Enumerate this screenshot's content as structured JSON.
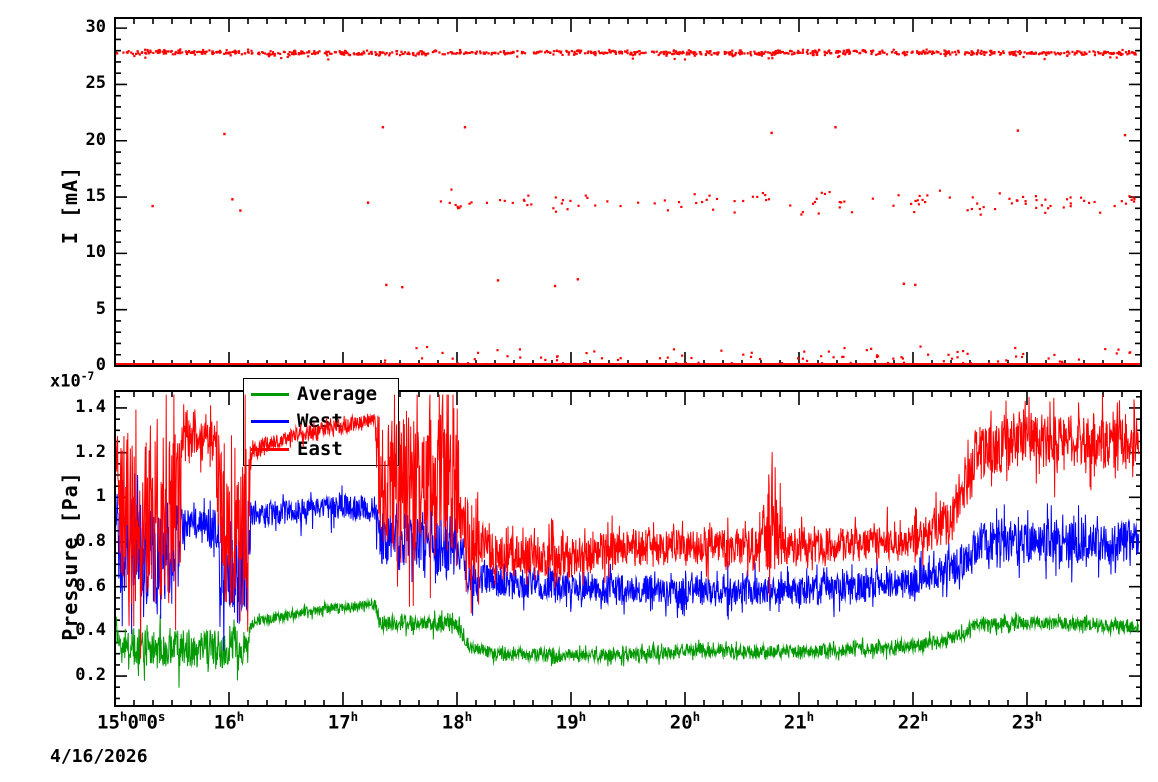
{
  "figure": {
    "date_label": "4/16/2026",
    "background": "#ffffff",
    "frame_color": "#000000"
  },
  "x_axis": {
    "tick_values": [
      15,
      16,
      17,
      18,
      19,
      20,
      21,
      22,
      23
    ],
    "tick_labels": [
      "15^{h}0^{m}0^{s}",
      "16^{h}",
      "17^{h}",
      "18^{h}",
      "19^{h}",
      "20^{h}",
      "21^{h}",
      "22^{h}",
      "23^{h}"
    ],
    "minor_tick_step_hours": 0.16667
  },
  "chart_data": [
    {
      "id": "beam-current",
      "type": "scatter",
      "ylabel": "I [mA]",
      "marker_color": "#ff0000",
      "xlim": [
        15,
        24
      ],
      "ylim": [
        0,
        30.9
      ],
      "grid": false,
      "yticks": {
        "values": [
          0,
          5,
          10,
          15,
          20,
          25,
          30
        ],
        "labels": [
          "0",
          "5",
          "10",
          "15",
          "20",
          "25",
          "30"
        ]
      },
      "bands": [
        {
          "name": "main-current",
          "y_center": 27.82,
          "y_sigma": 0.1,
          "x_start": 15.0,
          "x_end": 23.98,
          "count": 900
        },
        {
          "name": "dropout-mid",
          "y_center": 14.55,
          "y_sigma": 0.45,
          "x_start": 17.85,
          "x_end": 23.95,
          "count": 125
        },
        {
          "name": "near-zero-scatter",
          "y_center": 0.75,
          "y_sigma": 0.45,
          "x_start": 17.3,
          "x_end": 23.95,
          "count": 95
        },
        {
          "name": "zero-line",
          "y_center": 0.05,
          "y_sigma": 0.05,
          "x_start": 15.0,
          "x_end": 23.98,
          "count": 260,
          "solid": true
        }
      ],
      "outliers": [
        [
          15.33,
          14.2
        ],
        [
          15.96,
          20.6
        ],
        [
          16.03,
          14.8
        ],
        [
          16.1,
          13.8
        ],
        [
          17.22,
          14.5
        ],
        [
          17.35,
          21.2
        ],
        [
          17.38,
          7.2
        ],
        [
          17.52,
          7.0
        ],
        [
          18.07,
          21.2
        ],
        [
          18.36,
          7.6
        ],
        [
          18.86,
          7.1
        ],
        [
          19.06,
          7.7
        ],
        [
          20.76,
          20.7
        ],
        [
          21.32,
          21.2
        ],
        [
          21.92,
          7.3
        ],
        [
          22.02,
          7.2
        ],
        [
          22.92,
          20.9
        ],
        [
          23.86,
          20.5
        ]
      ]
    },
    {
      "id": "pressure",
      "type": "line",
      "ylabel": "Pressure [Pa]",
      "scale_label": "x10^{-7}",
      "xlim": [
        15,
        24
      ],
      "ylim": [
        0.066,
        1.476
      ],
      "grid": false,
      "yticks": {
        "values": [
          0.2,
          0.4,
          0.6,
          0.8,
          1.0,
          1.2,
          1.4
        ],
        "labels": [
          "0.2",
          "0.4",
          "0.6",
          "0.8",
          "1",
          "1.2",
          "1.4"
        ]
      },
      "legend": {
        "position": "top-left",
        "entries": [
          {
            "label": "Average",
            "color": "#009900"
          },
          {
            "label": "West",
            "color": "#0000ff"
          },
          {
            "label": "East",
            "color": "#ff0000"
          }
        ]
      },
      "series": [
        {
          "name": "Average",
          "color": "#009900",
          "keyframes": [
            [
              15.0,
              0.4,
              0.05
            ],
            [
              15.06,
              0.33,
              0.11
            ],
            [
              16.16,
              0.32,
              0.11
            ],
            [
              16.2,
              0.44,
              0.025
            ],
            [
              16.7,
              0.49,
              0.025
            ],
            [
              17.0,
              0.51,
              0.025
            ],
            [
              17.28,
              0.52,
              0.03
            ],
            [
              17.33,
              0.44,
              0.04
            ],
            [
              18.0,
              0.43,
              0.045
            ],
            [
              18.1,
              0.34,
              0.04
            ],
            [
              18.3,
              0.3,
              0.035
            ],
            [
              19.3,
              0.29,
              0.035
            ],
            [
              20.0,
              0.31,
              0.035
            ],
            [
              21.0,
              0.31,
              0.035
            ],
            [
              22.0,
              0.33,
              0.035
            ],
            [
              22.35,
              0.37,
              0.035
            ],
            [
              22.55,
              0.43,
              0.035
            ],
            [
              23.0,
              0.44,
              0.035
            ],
            [
              23.98,
              0.42,
              0.035
            ]
          ]
        },
        {
          "name": "West",
          "color": "#0000ff",
          "keyframes": [
            [
              15.0,
              0.85,
              0.15
            ],
            [
              15.06,
              0.72,
              0.27
            ],
            [
              15.55,
              0.72,
              0.27
            ],
            [
              15.6,
              0.88,
              0.1
            ],
            [
              15.88,
              0.88,
              0.1
            ],
            [
              15.93,
              0.7,
              0.27
            ],
            [
              16.16,
              0.7,
              0.27
            ],
            [
              16.2,
              0.92,
              0.07
            ],
            [
              17.0,
              0.96,
              0.07
            ],
            [
              17.28,
              0.95,
              0.07
            ],
            [
              17.33,
              0.82,
              0.15
            ],
            [
              18.0,
              0.76,
              0.15
            ],
            [
              18.1,
              0.63,
              0.1
            ],
            [
              19.0,
              0.6,
              0.08
            ],
            [
              20.0,
              0.58,
              0.08
            ],
            [
              21.0,
              0.58,
              0.08
            ],
            [
              22.0,
              0.62,
              0.08
            ],
            [
              22.4,
              0.7,
              0.1
            ],
            [
              22.6,
              0.8,
              0.12
            ],
            [
              23.98,
              0.8,
              0.12
            ]
          ]
        },
        {
          "name": "East",
          "color": "#ff0000",
          "keyframes": [
            [
              15.0,
              1.25,
              0.15
            ],
            [
              15.06,
              0.9,
              0.5
            ],
            [
              15.55,
              0.9,
              0.5
            ],
            [
              15.6,
              1.27,
              0.15
            ],
            [
              15.88,
              1.27,
              0.15
            ],
            [
              15.93,
              0.9,
              0.5
            ],
            [
              16.16,
              0.9,
              0.5
            ],
            [
              16.2,
              1.21,
              0.05
            ],
            [
              16.6,
              1.28,
              0.04
            ],
            [
              17.0,
              1.32,
              0.04
            ],
            [
              17.28,
              1.35,
              0.04
            ],
            [
              17.33,
              1.05,
              0.4
            ],
            [
              18.0,
              1.05,
              0.4
            ],
            [
              18.06,
              0.85,
              0.25
            ],
            [
              18.3,
              0.74,
              0.12
            ],
            [
              19.0,
              0.73,
              0.12
            ],
            [
              19.5,
              0.78,
              0.1
            ],
            [
              20.6,
              0.78,
              0.1
            ],
            [
              20.75,
              0.85,
              0.3
            ],
            [
              20.9,
              0.78,
              0.1
            ],
            [
              22.0,
              0.8,
              0.1
            ],
            [
              22.35,
              0.9,
              0.12
            ],
            [
              22.55,
              1.2,
              0.15
            ],
            [
              23.0,
              1.25,
              0.15
            ],
            [
              23.98,
              1.25,
              0.15
            ]
          ]
        }
      ]
    }
  ]
}
